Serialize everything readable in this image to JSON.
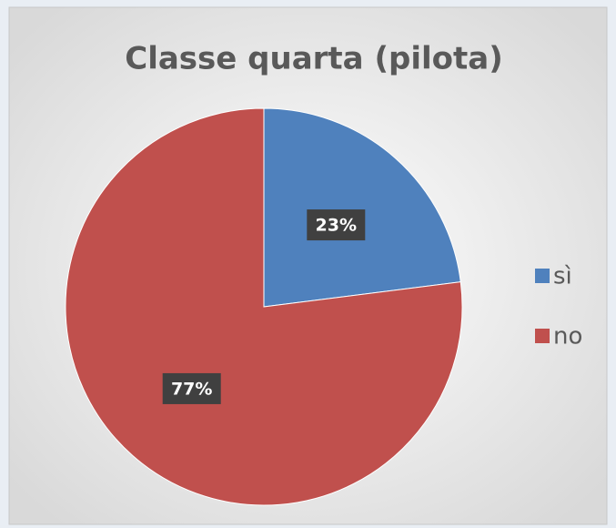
{
  "chart_data": {
    "type": "pie",
    "title": "Classe quarta (pilota)",
    "categories": [
      "sì",
      "no"
    ],
    "values": [
      23,
      77
    ],
    "value_labels": [
      "23%",
      "77%"
    ],
    "colors": [
      "#4f81bd",
      "#c0504d"
    ],
    "legend": "right"
  }
}
